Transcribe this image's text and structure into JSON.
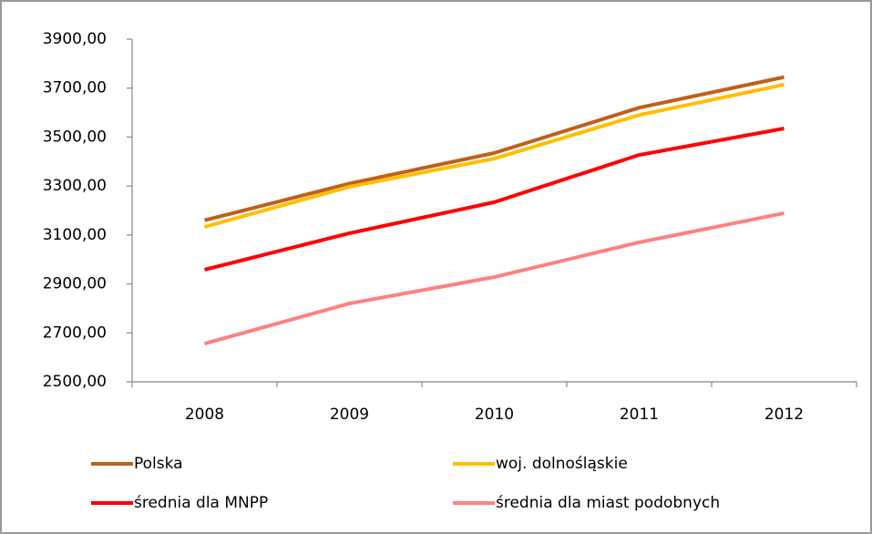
{
  "chart_data": {
    "type": "line",
    "categories": [
      "2008",
      "2009",
      "2010",
      "2011",
      "2012"
    ],
    "series": [
      {
        "name": "Polska",
        "color": "#c0601a",
        "values": [
          3160,
          3310,
          3435,
          3620,
          3745
        ]
      },
      {
        "name": "woj. dolnośląskie",
        "color": "#ffbf00",
        "values": [
          3133,
          3297,
          3412,
          3590,
          3714
        ]
      },
      {
        "name": "średnia dla MNPP",
        "color": "#ff0000",
        "values": [
          2958,
          3107,
          3234,
          3427,
          3535
        ]
      },
      {
        "name": "średnia dla miast podobnych",
        "color": "#ff8080",
        "values": [
          2656,
          2820,
          2928,
          3070,
          3189
        ]
      }
    ],
    "ylim": [
      2500,
      3900
    ],
    "yticks": [
      {
        "value": 2500,
        "label": "2500,00"
      },
      {
        "value": 2700,
        "label": "2700,00"
      },
      {
        "value": 2900,
        "label": "2900,00"
      },
      {
        "value": 3100,
        "label": "3100,00"
      },
      {
        "value": 3300,
        "label": "3300,00"
      },
      {
        "value": 3500,
        "label": "3500,00"
      },
      {
        "value": 3700,
        "label": "3700,00"
      },
      {
        "value": 3900,
        "label": "3900,00"
      }
    ],
    "grid": false,
    "legend": "bottom"
  }
}
